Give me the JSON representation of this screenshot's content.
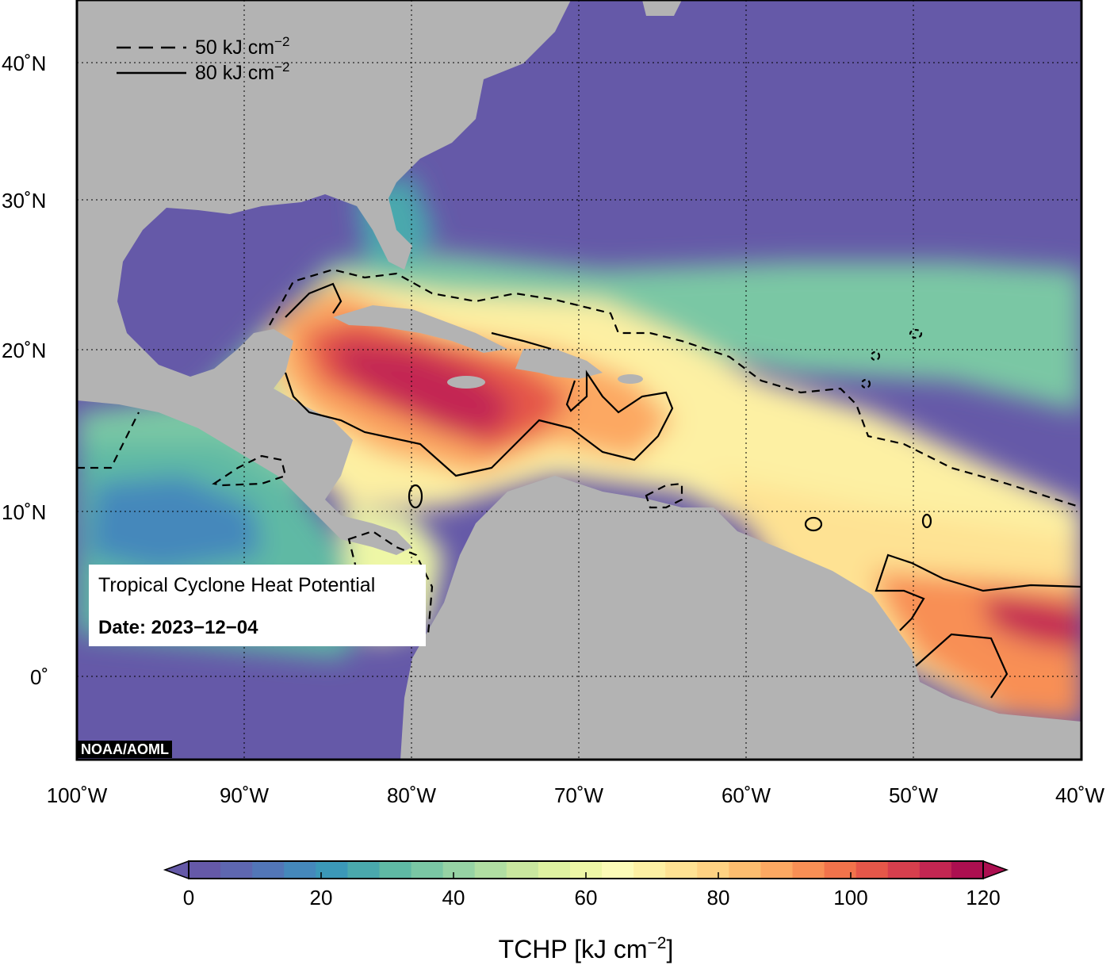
{
  "map": {
    "title": "Tropical Cyclone Heat Potential",
    "date_label": "Date: 2023−12−04",
    "credit": "NOAA/AOML",
    "lon_ticks": [
      "100˚W",
      "90˚W",
      "80˚W",
      "70˚W",
      "60˚W",
      "50˚W",
      "40˚W"
    ],
    "lat_ticks": [
      "40˚N",
      "30˚N",
      "20˚N",
      "10˚N",
      "0˚"
    ],
    "extent": {
      "lon_min": -100,
      "lon_max": -40,
      "lat_min": -5,
      "lat_max": 44
    },
    "contour_legend": {
      "dashed_value": "50",
      "solid_value": "80",
      "unit_prefix": "kJ cm",
      "unit_exp": "−2"
    },
    "colors": {
      "land": "#b3b3b3",
      "background": "#ffffff",
      "cold_ocean": "#6559a8"
    }
  },
  "colorbar": {
    "ticks": [
      "0",
      "20",
      "40",
      "60",
      "80",
      "100",
      "120"
    ],
    "title_prefix": "TCHP [kJ cm",
    "title_exp": "−2",
    "title_suffix": "]",
    "min": 0,
    "max": 120,
    "colors": [
      "#6559a8",
      "#5e67b0",
      "#5276b7",
      "#4588bb",
      "#3b98b8",
      "#4aa9ad",
      "#5fb9a4",
      "#7ac7a4",
      "#96d3a4",
      "#b0dea2",
      "#c9e79f",
      "#def2a1",
      "#eef7a6",
      "#fcfbb7",
      "#fdf0a3",
      "#fee293",
      "#fed282",
      "#fdbd6f",
      "#fca862",
      "#f88f55",
      "#f1734b",
      "#e55749",
      "#d63f4d",
      "#c32652",
      "#ac0f50"
    ]
  }
}
